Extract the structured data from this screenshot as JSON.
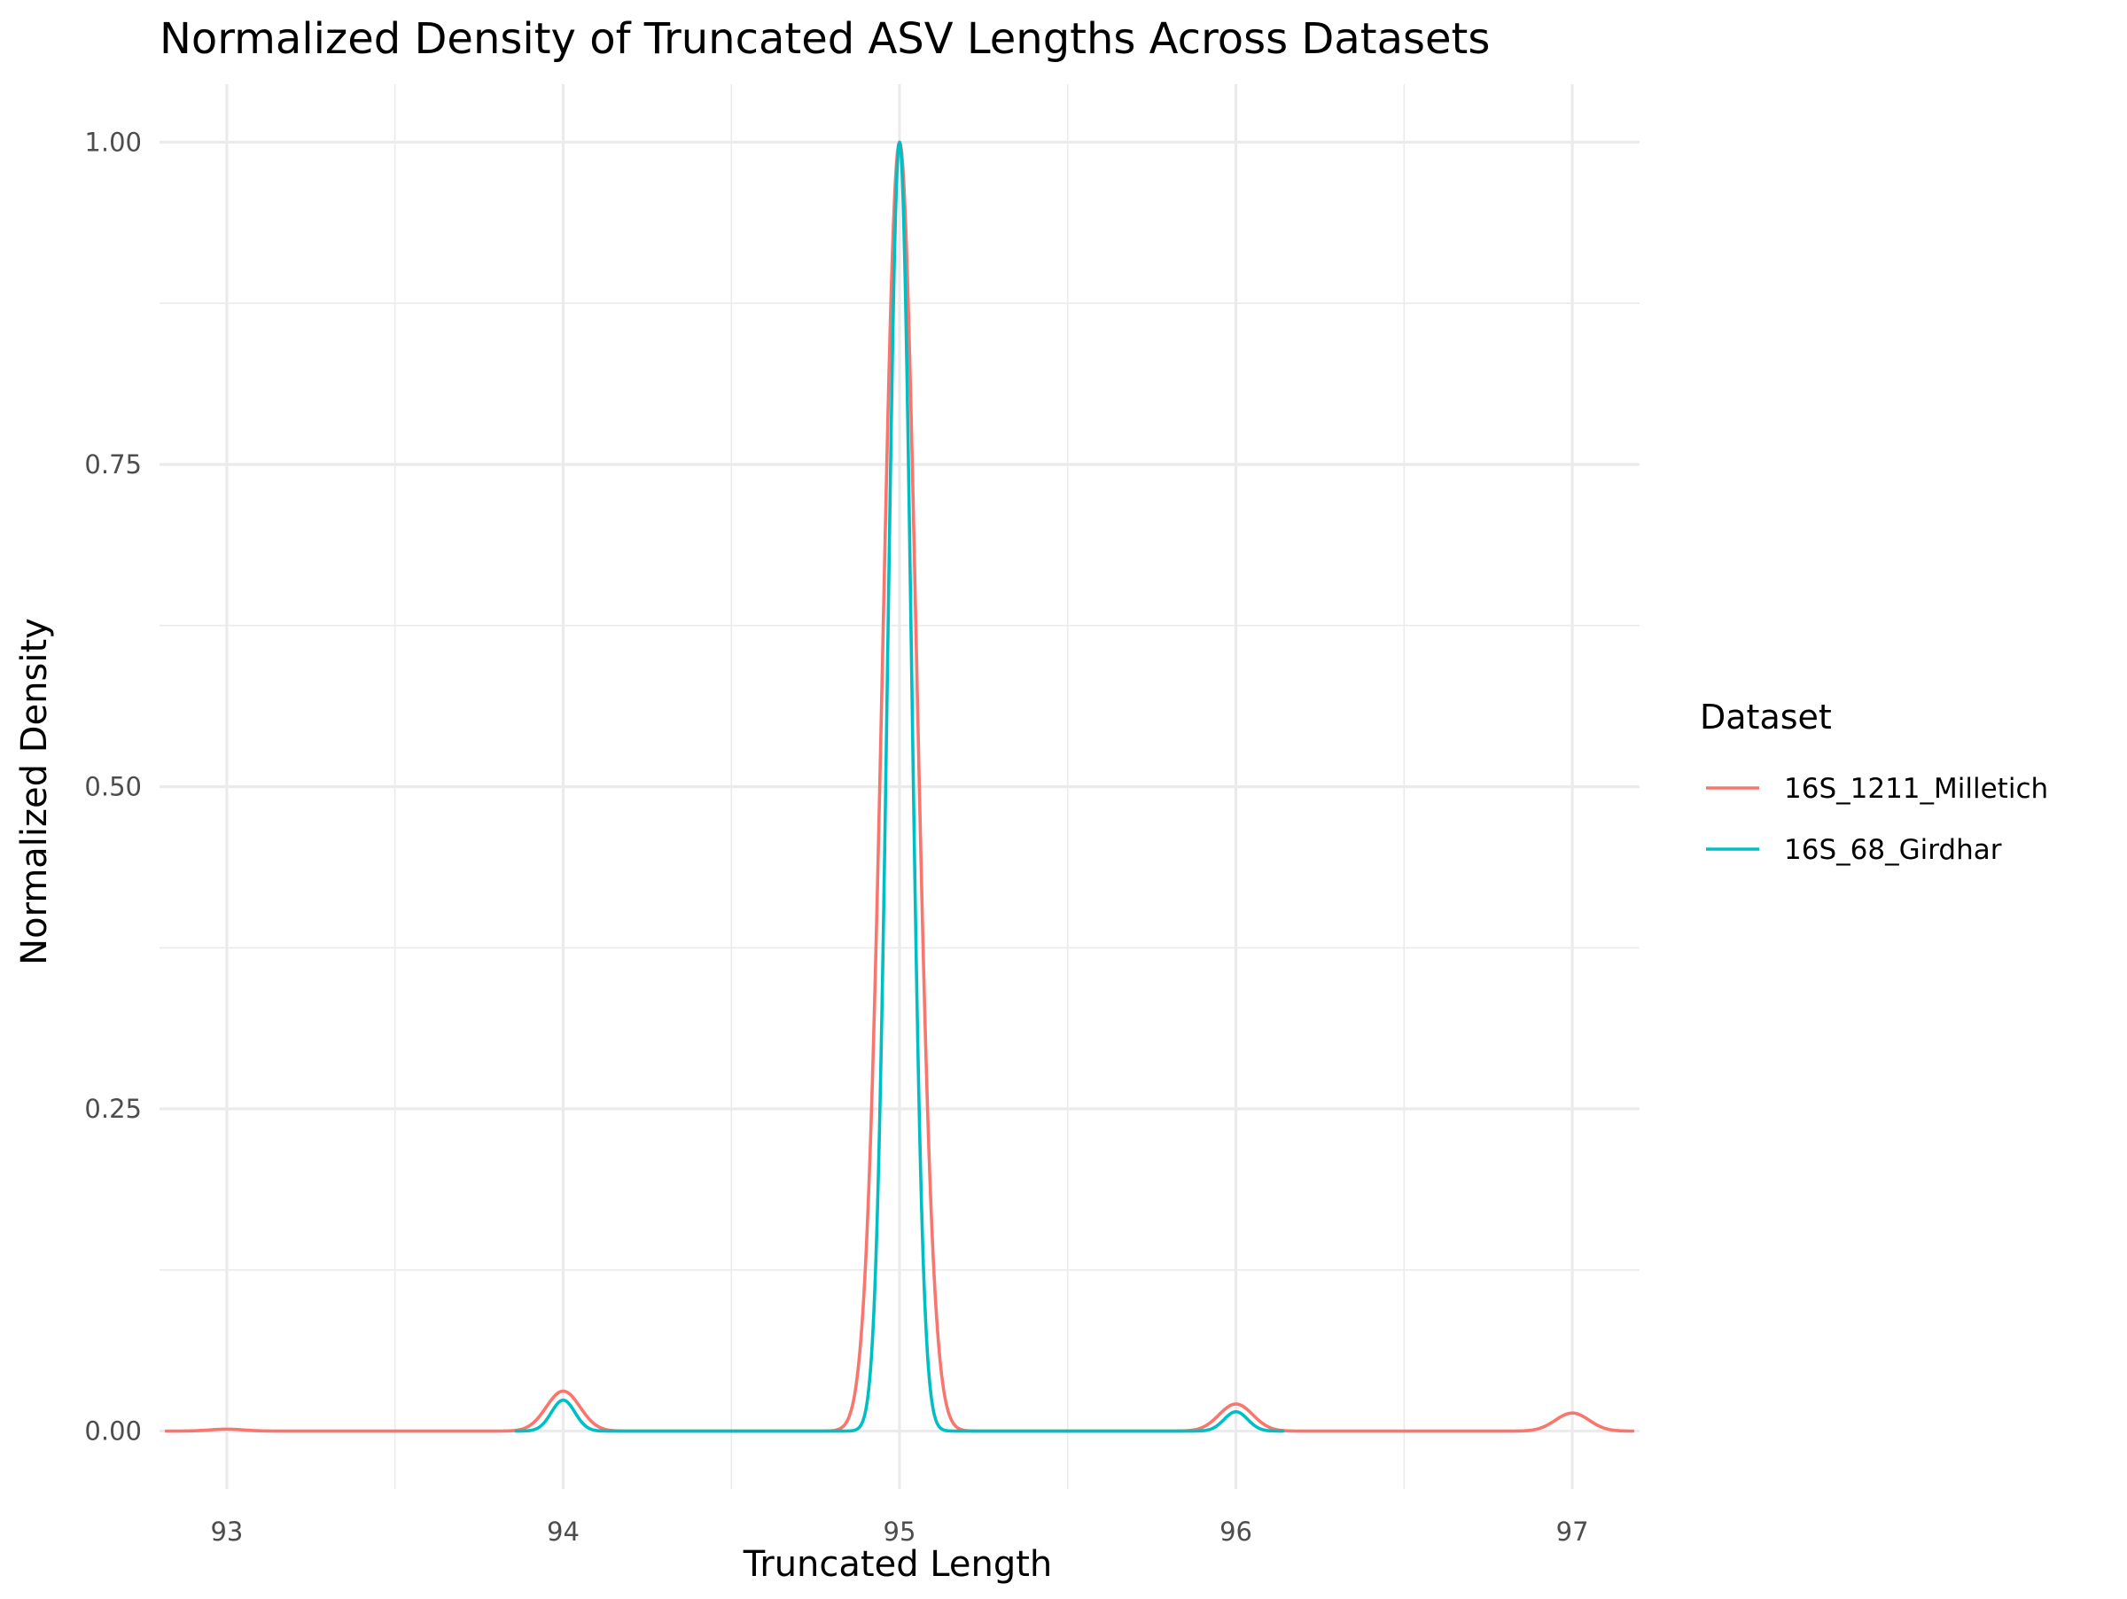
{
  "chart_data": {
    "type": "line",
    "title": "Normalized Density of Truncated ASV Lengths Across Datasets",
    "xlabel": "Truncated Length",
    "ylabel": "Normalized Density",
    "xlim": [
      92.8,
      97.2
    ],
    "ylim": [
      -0.045,
      1.045
    ],
    "x_ticks": [
      93,
      94,
      95,
      96,
      97
    ],
    "x_tick_labels": [
      "93",
      "94",
      "95",
      "96",
      "97"
    ],
    "y_ticks": [
      0,
      0.25,
      0.5,
      0.75,
      1.0
    ],
    "y_tick_labels": [
      "0.00",
      "0.25",
      "0.50",
      "0.75",
      "1.00"
    ],
    "grid": true,
    "legend": {
      "title": "Dataset",
      "position": "right"
    },
    "series": [
      {
        "name": "16S_1211_Milletich",
        "color": "#F8766D",
        "x_range": [
          92.82,
          97.18
        ],
        "peaks": [
          {
            "x": 93.0,
            "height": 0.0015,
            "width": 0.05
          },
          {
            "x": 94.0,
            "height": 0.031,
            "width": 0.05
          },
          {
            "x": 95.0,
            "height": 1.0,
            "width": 0.05
          },
          {
            "x": 96.0,
            "height": 0.021,
            "width": 0.05
          },
          {
            "x": 97.0,
            "height": 0.014,
            "width": 0.05
          }
        ]
      },
      {
        "name": "16S_68_Girdhar",
        "color": "#00BFC4",
        "x_range": [
          93.86,
          96.14
        ],
        "peaks": [
          {
            "x": 94.0,
            "height": 0.024,
            "width": 0.035
          },
          {
            "x": 95.0,
            "height": 1.0,
            "width": 0.035
          },
          {
            "x": 96.0,
            "height": 0.015,
            "width": 0.035
          }
        ]
      }
    ]
  }
}
